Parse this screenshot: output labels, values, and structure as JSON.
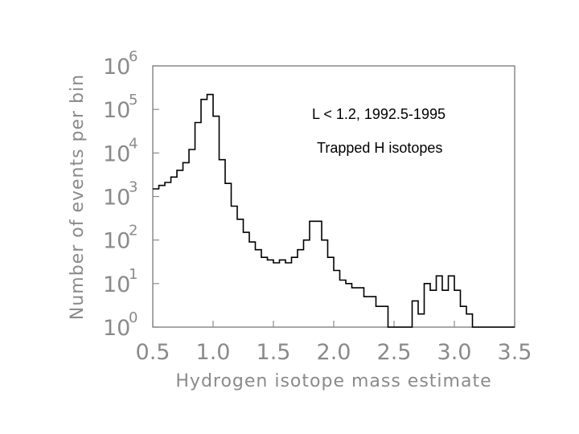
{
  "colors": {
    "frame": "#8a8a8a",
    "text": "#8a8a8a",
    "histogram": "#000000",
    "annotation": "#000000"
  },
  "chart_data": {
    "type": "bar",
    "style": "step histogram",
    "xlabel": "Hydrogen isotope mass estimate",
    "ylabel": "Number of events per bin",
    "xlim": [
      0.5,
      3.5
    ],
    "ylim": [
      1,
      1000000
    ],
    "yscale": "log",
    "grid": false,
    "xticks": [
      {
        "value": 0.5,
        "label": "0.5"
      },
      {
        "value": 1.0,
        "label": "1.0"
      },
      {
        "value": 1.5,
        "label": "1.5"
      },
      {
        "value": 2.0,
        "label": "2.0"
      },
      {
        "value": 2.5,
        "label": "2.5"
      },
      {
        "value": 3.0,
        "label": "3.0"
      },
      {
        "value": 3.5,
        "label": "3.5"
      }
    ],
    "yticks": [
      {
        "value": 1,
        "base": "10",
        "exp": "0"
      },
      {
        "value": 10,
        "base": "10",
        "exp": "1"
      },
      {
        "value": 100,
        "base": "10",
        "exp": "2"
      },
      {
        "value": 1000,
        "base": "10",
        "exp": "3"
      },
      {
        "value": 10000,
        "base": "10",
        "exp": "4"
      },
      {
        "value": 100000,
        "base": "10",
        "exp": "5"
      },
      {
        "value": 1000000,
        "base": "10",
        "exp": "6"
      }
    ],
    "bin_edges": [
      0.5,
      0.55,
      0.6,
      0.65,
      0.7,
      0.75,
      0.8,
      0.85,
      0.9,
      0.95,
      1.0,
      1.05,
      1.1,
      1.15,
      1.2,
      1.25,
      1.3,
      1.35,
      1.4,
      1.45,
      1.5,
      1.55,
      1.6,
      1.65,
      1.7,
      1.75,
      1.8,
      1.85,
      1.9,
      1.95,
      2.0,
      2.05,
      2.1,
      2.15,
      2.2,
      2.25,
      2.3,
      2.35,
      2.4,
      2.45,
      2.5,
      2.55,
      2.6,
      2.65,
      2.7,
      2.75,
      2.8,
      2.85,
      2.9,
      2.95,
      3.0,
      3.05,
      3.1,
      3.15,
      3.2,
      3.25,
      3.3,
      3.35,
      3.4,
      3.45,
      3.5
    ],
    "counts": [
      1500,
      1800,
      2100,
      2800,
      4000,
      6000,
      12000,
      50000,
      170000,
      220000,
      70000,
      7000,
      2000,
      600,
      300,
      150,
      90,
      60,
      40,
      35,
      30,
      35,
      30,
      40,
      60,
      100,
      270,
      270,
      100,
      40,
      20,
      12,
      10,
      8,
      8,
      5,
      5,
      3,
      3,
      1,
      1,
      1,
      0,
      4,
      2,
      10,
      7,
      15,
      7,
      15,
      7,
      3,
      2,
      1,
      1,
      0,
      1,
      1,
      1,
      1
    ],
    "annotations": [
      "L < 1.2, 1992.5-1995",
      "Trapped H isotopes"
    ]
  }
}
